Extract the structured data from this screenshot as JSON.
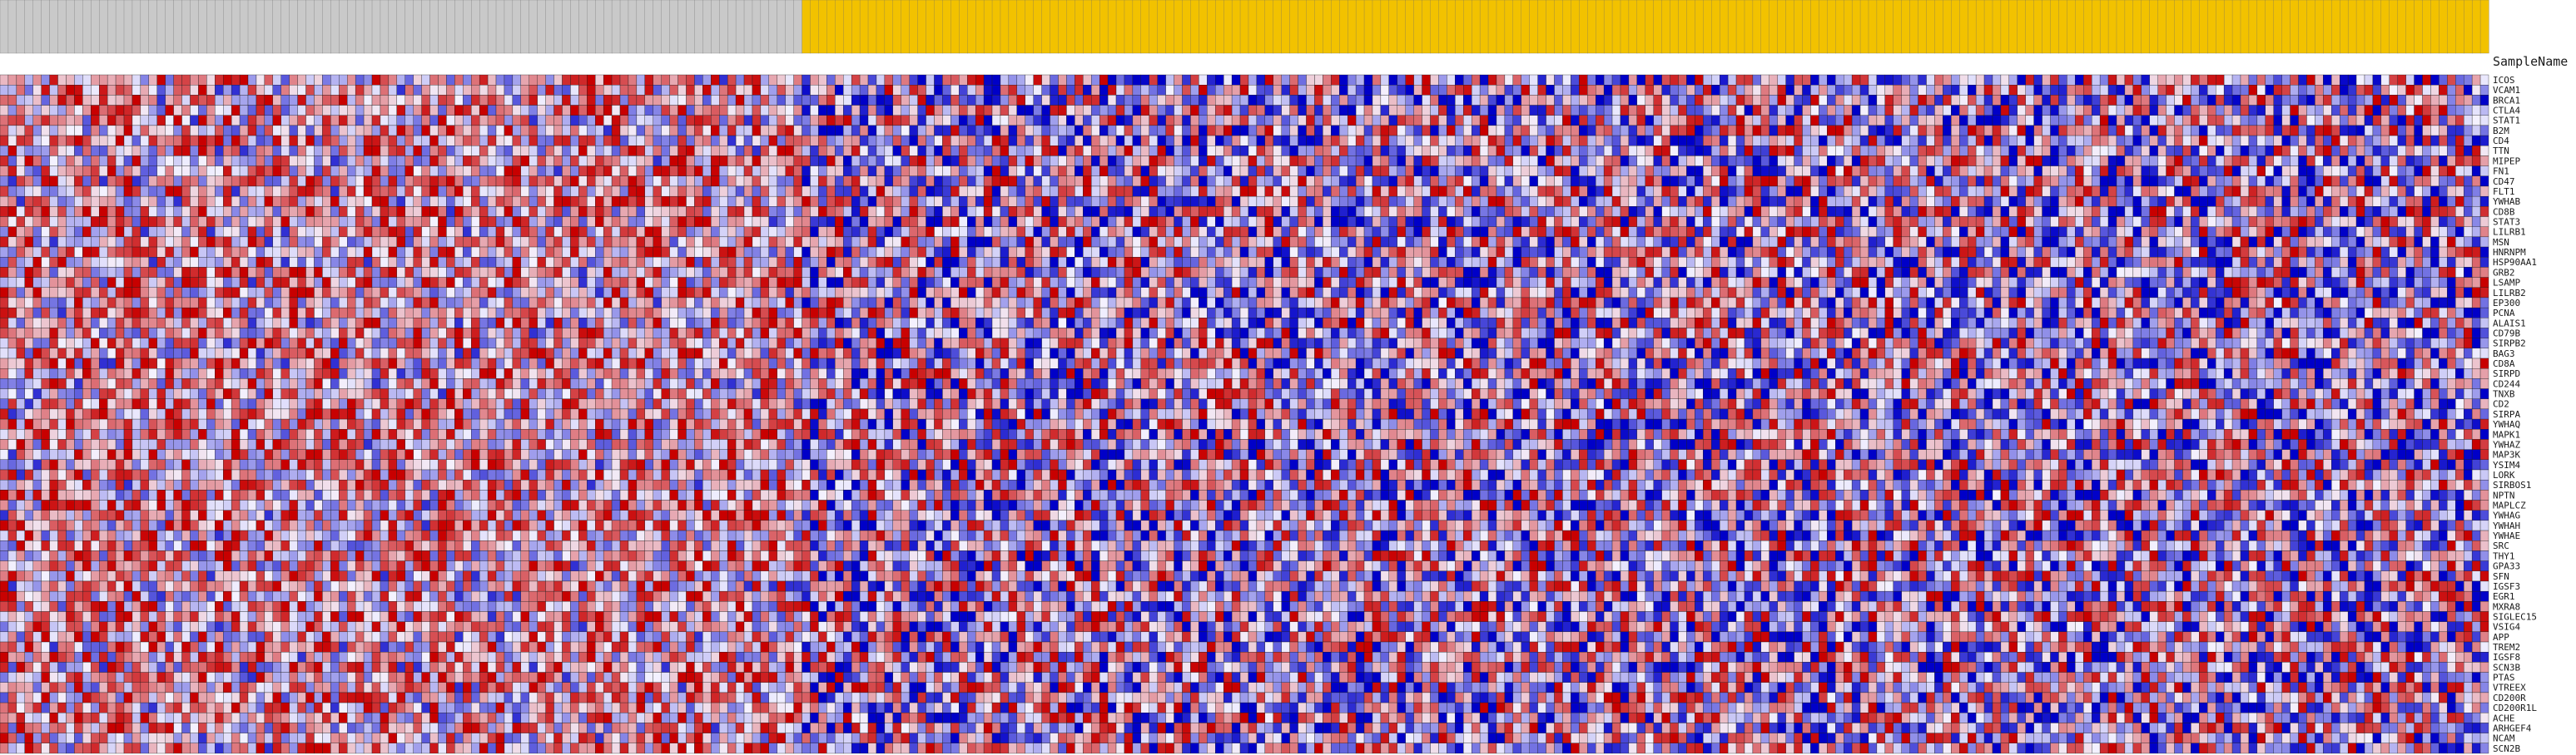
{
  "chart_data": {
    "type": "heatmap",
    "header_title": "SampleName",
    "column_label_text": "",
    "group_colors": {
      "normal": "#c9c9c9",
      "tumor": "#f2c200"
    },
    "color_scale": {
      "low": "#0000c8",
      "mid": "#f4f2ff",
      "high": "#c80000"
    },
    "columns": {
      "normal": 97,
      "tumor": 204
    },
    "rows": [
      "ICOS",
      "VCAM1",
      "BRCA1",
      "CTLA4",
      "STAT1",
      "B2M",
      "CD4",
      "TTN",
      "MIPEP",
      "FN1",
      "CD47",
      "FLT1",
      "YWHAB",
      "CD8B",
      "STAT3",
      "LILRB1",
      "MSN",
      "HNRNPM",
      "HSP90AA1",
      "GRB2",
      "LSAMP",
      "LILRB2",
      "EP300",
      "PCNA",
      "ALAIS1",
      "CD79B",
      "SIRPB2",
      "BAG3",
      "CD8A",
      "SIRPD",
      "CD244",
      "TNXB",
      "CD2",
      "SIRPA",
      "YWHAQ",
      "MAPK1",
      "YWHAZ",
      "MAP3K",
      "YSIM4",
      "LORK",
      "SIRBOS1",
      "NPTN",
      "MAPLCZ",
      "YWHAG",
      "YWHAH",
      "YWHAE",
      "SRC",
      "THY1",
      "GPA33",
      "SFN",
      "IGSF3",
      "EGR1",
      "MXRA8",
      "SIGLEC15",
      "VSIG4",
      "APP",
      "TREM2",
      "IGSF8",
      "SCN3B",
      "PTAS",
      "VTREEX",
      "CD200R",
      "CD200R1L",
      "ACHE",
      "ARHGEF4",
      "NCAM",
      "SCN2B"
    ]
  }
}
